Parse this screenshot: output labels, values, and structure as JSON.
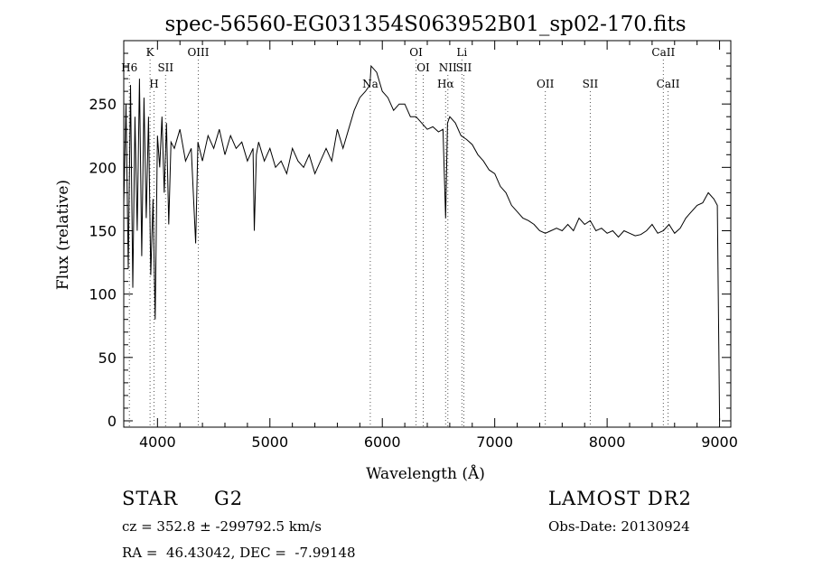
{
  "chart_data": {
    "type": "line",
    "title": "spec-56560-EG031354S063952B01_sp02-170.fits",
    "xlabel": "Wavelength (Å)",
    "ylabel": "Flux (relative)",
    "xlim": [
      3700,
      9100
    ],
    "ylim": [
      -5,
      300
    ],
    "x_ticks": [
      4000,
      5000,
      6000,
      7000,
      8000,
      9000
    ],
    "y_ticks": [
      0,
      50,
      100,
      150,
      200,
      250
    ],
    "grid": false,
    "legend": "none",
    "line_color": "#000000",
    "line_marker_color": "#555555",
    "series": [
      {
        "x": [
          3700,
          3720,
          3740,
          3760,
          3780,
          3800,
          3820,
          3840,
          3860,
          3880,
          3900,
          3920,
          3940,
          3960,
          3980,
          4000,
          4020,
          4040,
          4060,
          4080,
          4100,
          4120,
          4150,
          4200,
          4250,
          4300,
          4340,
          4360,
          4400,
          4450,
          4500,
          4550,
          4600,
          4650,
          4700,
          4750,
          4800,
          4850,
          4861,
          4880,
          4900,
          4950,
          5000,
          5050,
          5100,
          5150,
          5200,
          5250,
          5300,
          5350,
          5400,
          5450,
          5500,
          5550,
          5600,
          5650,
          5700,
          5750,
          5800,
          5850,
          5890,
          5900,
          5950,
          6000,
          6050,
          6100,
          6150,
          6200,
          6250,
          6300,
          6350,
          6400,
          6450,
          6500,
          6540,
          6563,
          6580,
          6600,
          6650,
          6700,
          6750,
          6800,
          6850,
          6900,
          6950,
          7000,
          7050,
          7100,
          7150,
          7200,
          7250,
          7300,
          7350,
          7400,
          7450,
          7500,
          7550,
          7600,
          7650,
          7700,
          7750,
          7800,
          7850,
          7900,
          7950,
          8000,
          8050,
          8100,
          8150,
          8200,
          8250,
          8300,
          8350,
          8400,
          8450,
          8500,
          8550,
          8600,
          8650,
          8700,
          8750,
          8800,
          8850,
          8900,
          8950,
          8980,
          9000
        ],
        "y": [
          170,
          250,
          120,
          265,
          105,
          240,
          150,
          270,
          130,
          255,
          160,
          240,
          115,
          175,
          80,
          225,
          200,
          240,
          180,
          235,
          155,
          220,
          215,
          230,
          205,
          215,
          140,
          220,
          205,
          225,
          215,
          230,
          210,
          225,
          215,
          220,
          205,
          215,
          150,
          210,
          220,
          205,
          215,
          200,
          205,
          195,
          215,
          205,
          200,
          210,
          195,
          205,
          215,
          205,
          230,
          215,
          230,
          245,
          255,
          260,
          265,
          280,
          275,
          260,
          255,
          245,
          250,
          250,
          240,
          240,
          235,
          230,
          232,
          228,
          230,
          160,
          235,
          240,
          235,
          225,
          222,
          218,
          210,
          205,
          198,
          195,
          185,
          180,
          170,
          165,
          160,
          158,
          155,
          150,
          148,
          150,
          152,
          150,
          155,
          150,
          160,
          155,
          158,
          150,
          152,
          148,
          150,
          145,
          150,
          148,
          146,
          147,
          150,
          155,
          148,
          150,
          155,
          148,
          152,
          160,
          165,
          170,
          172,
          180,
          175,
          170,
          0
        ]
      }
    ],
    "annotations": [
      {
        "label": "H6",
        "x": 3750,
        "row": 2
      },
      {
        "label": "K",
        "x": 3934,
        "row": 1
      },
      {
        "label": "H",
        "x": 3969,
        "row": 3
      },
      {
        "label": "SII",
        "x": 4072,
        "row": 2
      },
      {
        "label": "OIII",
        "x": 4363,
        "row": 1
      },
      {
        "label": "Na",
        "x": 5893,
        "row": 3
      },
      {
        "label": "OI",
        "x": 6300,
        "row": 1
      },
      {
        "label": "OI",
        "x": 6364,
        "row": 2
      },
      {
        "label": "NII",
        "x": 6583,
        "row": 2
      },
      {
        "label": "Hα",
        "x": 6563,
        "row": 3
      },
      {
        "label": "Li",
        "x": 6708,
        "row": 1
      },
      {
        "label": "SII",
        "x": 6725,
        "row": 2
      },
      {
        "label": "OII",
        "x": 7450,
        "row": 3
      },
      {
        "label": "SII",
        "x": 7850,
        "row": 3
      },
      {
        "label": "CaII",
        "x": 8500,
        "row": 1
      },
      {
        "label": "CaII",
        "x": 8542,
        "row": 3
      }
    ]
  },
  "info": {
    "type_label": "STAR",
    "subclass": "G2",
    "survey": "LAMOST DR2",
    "cz_line": "cz = 352.8 ± -299792.5 km/s",
    "obs_date_line": "Obs-Date: 20130924",
    "radec_line": "RA =  46.43042, DEC =  -7.99148"
  }
}
